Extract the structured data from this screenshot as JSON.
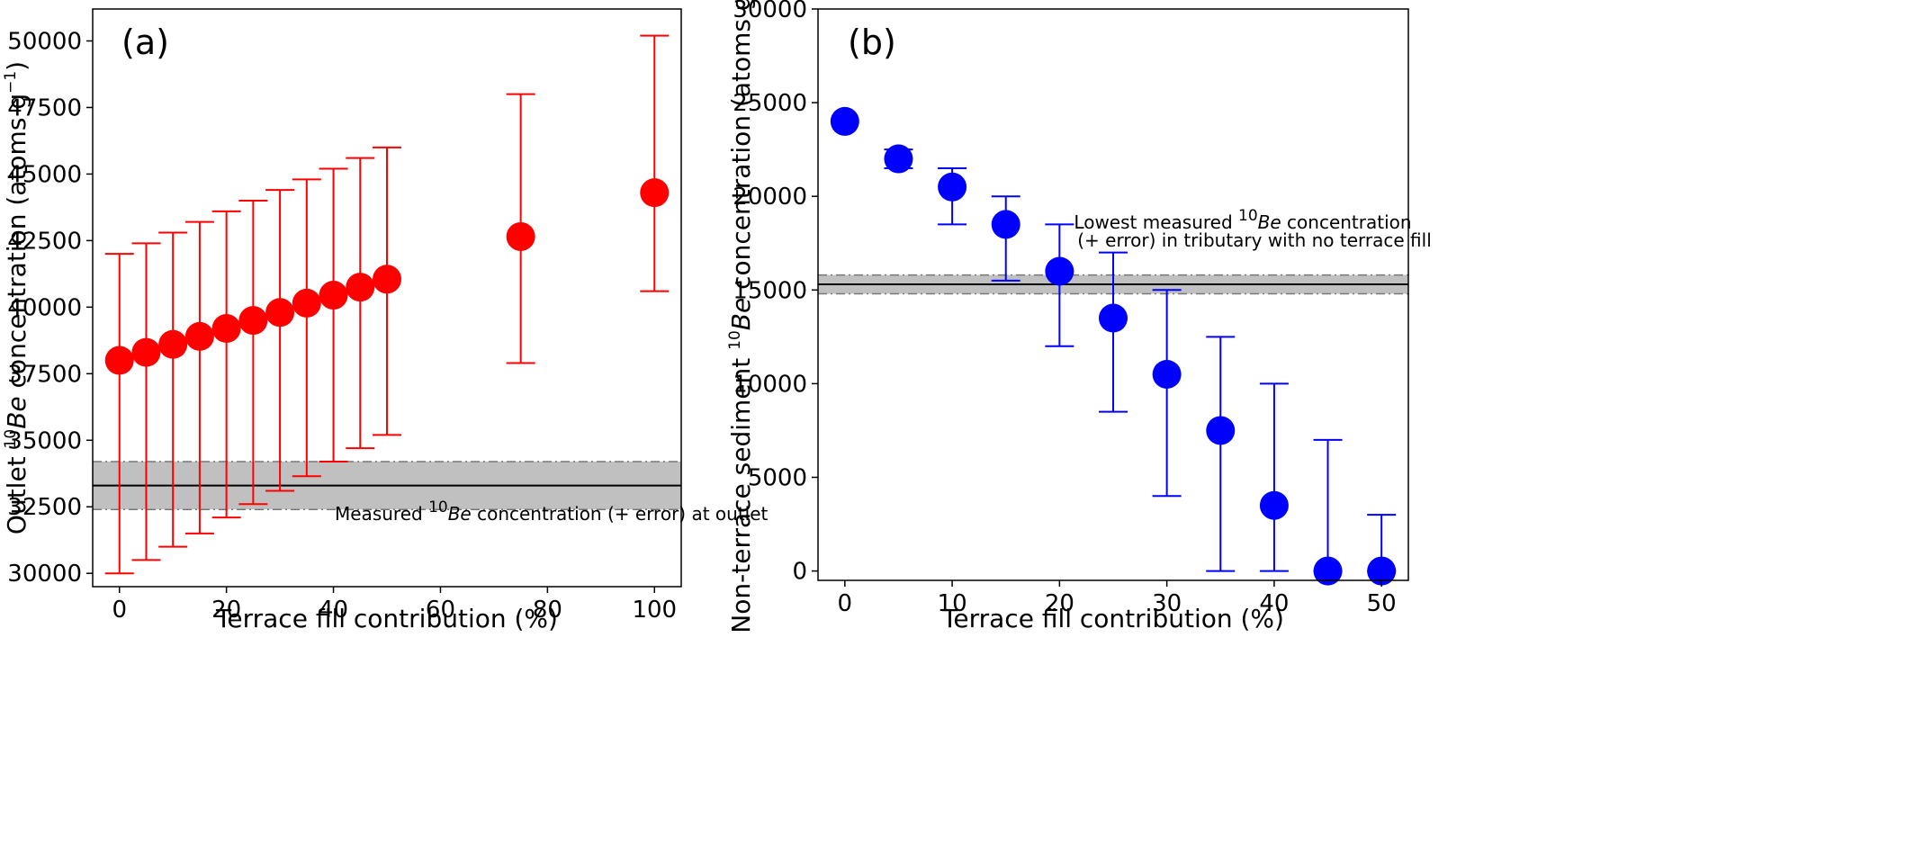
{
  "chart_data": [
    {
      "type": "scatter",
      "panel_label": "(a)",
      "xlabel": "Terrace fill contribution (%)",
      "ylabel_parts": {
        "pre": "Outlet ",
        "sup": "10",
        "ital": "Be",
        "post": " concentration (atoms g",
        "sup2": "−1",
        "end": ")"
      },
      "xlim": [
        -5,
        105
      ],
      "ylim": [
        29500,
        51200
      ],
      "xticks": [
        0,
        20,
        40,
        60,
        80,
        100
      ],
      "yticks": [
        30000,
        32500,
        35000,
        37500,
        40000,
        42500,
        45000,
        47500,
        50000
      ],
      "marker_color": "#ff0000",
      "error_color": "#ff0000",
      "band_color": "#c0c0c0",
      "reference": {
        "value": 33300,
        "low": 32400,
        "high": 34200
      },
      "annotation_parts": {
        "pre": "Measured ",
        "sup": "10",
        "ital": "Be",
        "post": " concentration (+ error) at outlet"
      },
      "points": [
        {
          "x": 0,
          "y": 38000,
          "low": 30000,
          "high": 42000
        },
        {
          "x": 5,
          "y": 38300,
          "low": 30500,
          "high": 42400
        },
        {
          "x": 10,
          "y": 38600,
          "low": 31000,
          "high": 42800
        },
        {
          "x": 15,
          "y": 38900,
          "low": 31500,
          "high": 43200
        },
        {
          "x": 20,
          "y": 39200,
          "low": 32100,
          "high": 43600
        },
        {
          "x": 25,
          "y": 39500,
          "low": 32600,
          "high": 44000
        },
        {
          "x": 30,
          "y": 39800,
          "low": 33100,
          "high": 44400
        },
        {
          "x": 35,
          "y": 40150,
          "low": 33650,
          "high": 44800
        },
        {
          "x": 40,
          "y": 40450,
          "low": 34200,
          "high": 45200
        },
        {
          "x": 45,
          "y": 40750,
          "low": 34700,
          "high": 45600
        },
        {
          "x": 50,
          "y": 41050,
          "low": 35200,
          "high": 46000
        },
        {
          "x": 75,
          "y": 42650,
          "low": 37900,
          "high": 48000
        },
        {
          "x": 100,
          "y": 44300,
          "low": 40600,
          "high": 50200
        }
      ]
    },
    {
      "type": "scatter",
      "panel_label": "(b)",
      "xlabel": "Terrace fill contribution (%)",
      "ylabel_parts": {
        "pre": "Non-terrace sediment ",
        "sup": "10",
        "ital": "Be",
        "post": " concentration (atoms g",
        "sup2": "−1",
        "end": ")"
      },
      "xlim": [
        -2.5,
        52.5
      ],
      "ylim": [
        -500,
        30000
      ],
      "xticks": [
        0,
        10,
        20,
        30,
        40,
        50
      ],
      "yticks": [
        0,
        5000,
        10000,
        15000,
        20000,
        25000,
        30000
      ],
      "marker_color": "#0000ff",
      "error_color": "#0000ff",
      "band_color": "#c0c0c0",
      "reference": {
        "value": 15300,
        "low": 14800,
        "high": 15800
      },
      "annotation_line1_parts": {
        "pre": "Lowest measured ",
        "sup": "10",
        "ital": "Be",
        "post": " concentration"
      },
      "annotation_line2": "(+ error) in tributary with no terrace fill",
      "points": [
        {
          "x": 0,
          "y": 24000,
          "low": 24000,
          "high": 24000
        },
        {
          "x": 5,
          "y": 22000,
          "low": 21500,
          "high": 22500
        },
        {
          "x": 10,
          "y": 20500,
          "low": 18500,
          "high": 21500
        },
        {
          "x": 15,
          "y": 18500,
          "low": 15500,
          "high": 20000
        },
        {
          "x": 20,
          "y": 16000,
          "low": 12000,
          "high": 18500
        },
        {
          "x": 25,
          "y": 13500,
          "low": 8500,
          "high": 17000
        },
        {
          "x": 30,
          "y": 10500,
          "low": 4000,
          "high": 15000
        },
        {
          "x": 35,
          "y": 7500,
          "low": 0,
          "high": 12500
        },
        {
          "x": 40,
          "y": 3500,
          "low": 0,
          "high": 10000
        },
        {
          "x": 45,
          "y": 0,
          "low": 0,
          "high": 7000
        },
        {
          "x": 50,
          "y": 0,
          "low": 0,
          "high": 3000
        }
      ]
    }
  ]
}
